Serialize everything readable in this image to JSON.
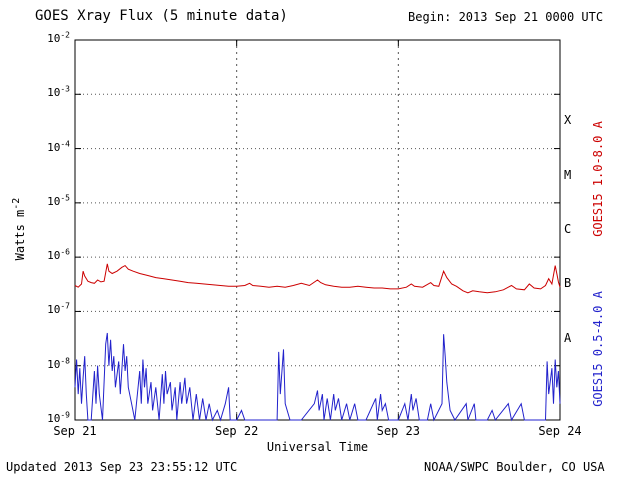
{
  "title": "GOES Xray Flux (5 minute data)",
  "begin_label": "Begin:  2013 Sep 21 0000 UTC",
  "footer": {
    "updated": "Updated 2013 Sep 23 23:55:12 UTC",
    "credit": "NOAA/SWPC Boulder, CO USA"
  },
  "colors": {
    "long_channel": "#cc0000",
    "short_channel": "#2222cc",
    "axis": "#000000",
    "grid": "#555555"
  },
  "chart_data": {
    "type": "line",
    "title": "GOES Xray Flux (5 minute data)",
    "xlabel": "Universal Time",
    "ylabel_base": "Watts m",
    "ylabel_exp": "-2",
    "x_ticks": [
      "Sep 21",
      "Sep 22",
      "Sep 23",
      "Sep 24"
    ],
    "x_range_days": [
      0,
      3
    ],
    "y_scale": "log",
    "y_tick_exponents": [
      -2,
      -3,
      -4,
      -5,
      -6,
      -7,
      -8,
      -9
    ],
    "ylim": [
      1e-09,
      0.01
    ],
    "grid": true,
    "flux_classes": [
      {
        "label": "X",
        "exp": -3.5
      },
      {
        "label": "M",
        "exp": -4.5
      },
      {
        "label": "C",
        "exp": -5.5
      },
      {
        "label": "B",
        "exp": -6.5
      },
      {
        "label": "A",
        "exp": -7.5
      }
    ],
    "legend_position": "right",
    "series": [
      {
        "name": "GOES15 1.0-8.0 A",
        "color": "#cc0000",
        "points": [
          [
            0.0,
            3e-07
          ],
          [
            0.02,
            2.8e-07
          ],
          [
            0.04,
            3.2e-07
          ],
          [
            0.05,
            5.5e-07
          ],
          [
            0.06,
            4.5e-07
          ],
          [
            0.08,
            3.6e-07
          ],
          [
            0.1,
            3.4e-07
          ],
          [
            0.12,
            3.3e-07
          ],
          [
            0.14,
            3.8e-07
          ],
          [
            0.16,
            3.5e-07
          ],
          [
            0.18,
            3.6e-07
          ],
          [
            0.2,
            7.5e-07
          ],
          [
            0.21,
            5.5e-07
          ],
          [
            0.23,
            5e-07
          ],
          [
            0.26,
            5.5e-07
          ],
          [
            0.29,
            6.5e-07
          ],
          [
            0.31,
            7e-07
          ],
          [
            0.33,
            6e-07
          ],
          [
            0.36,
            5.5e-07
          ],
          [
            0.4,
            5e-07
          ],
          [
            0.45,
            4.6e-07
          ],
          [
            0.5,
            4.2e-07
          ],
          [
            0.55,
            4e-07
          ],
          [
            0.6,
            3.8e-07
          ],
          [
            0.65,
            3.6e-07
          ],
          [
            0.7,
            3.4e-07
          ],
          [
            0.75,
            3.3e-07
          ],
          [
            0.8,
            3.2e-07
          ],
          [
            0.85,
            3.1e-07
          ],
          [
            0.9,
            3e-07
          ],
          [
            0.95,
            2.9e-07
          ],
          [
            1.0,
            2.9e-07
          ],
          [
            1.05,
            3e-07
          ],
          [
            1.08,
            3.3e-07
          ],
          [
            1.1,
            3e-07
          ],
          [
            1.15,
            2.9e-07
          ],
          [
            1.2,
            2.8e-07
          ],
          [
            1.25,
            2.9e-07
          ],
          [
            1.3,
            2.8e-07
          ],
          [
            1.35,
            3e-07
          ],
          [
            1.4,
            3.3e-07
          ],
          [
            1.45,
            3e-07
          ],
          [
            1.5,
            3.8e-07
          ],
          [
            1.52,
            3.4e-07
          ],
          [
            1.55,
            3.1e-07
          ],
          [
            1.6,
            2.9e-07
          ],
          [
            1.65,
            2.8e-07
          ],
          [
            1.7,
            2.8e-07
          ],
          [
            1.75,
            2.9e-07
          ],
          [
            1.8,
            2.8e-07
          ],
          [
            1.85,
            2.7e-07
          ],
          [
            1.9,
            2.7e-07
          ],
          [
            1.95,
            2.6e-07
          ],
          [
            2.0,
            2.6e-07
          ],
          [
            2.05,
            2.8e-07
          ],
          [
            2.08,
            3.2e-07
          ],
          [
            2.1,
            2.9e-07
          ],
          [
            2.15,
            2.8e-07
          ],
          [
            2.2,
            3.4e-07
          ],
          [
            2.22,
            3e-07
          ],
          [
            2.25,
            2.9e-07
          ],
          [
            2.28,
            5.5e-07
          ],
          [
            2.3,
            4.2e-07
          ],
          [
            2.33,
            3.2e-07
          ],
          [
            2.36,
            2.9e-07
          ],
          [
            2.4,
            2.4e-07
          ],
          [
            2.43,
            2.2e-07
          ],
          [
            2.46,
            2.4e-07
          ],
          [
            2.5,
            2.3e-07
          ],
          [
            2.55,
            2.2e-07
          ],
          [
            2.6,
            2.3e-07
          ],
          [
            2.65,
            2.5e-07
          ],
          [
            2.7,
            3e-07
          ],
          [
            2.73,
            2.6e-07
          ],
          [
            2.78,
            2.5e-07
          ],
          [
            2.81,
            3.2e-07
          ],
          [
            2.84,
            2.7e-07
          ],
          [
            2.88,
            2.6e-07
          ],
          [
            2.91,
            3e-07
          ],
          [
            2.93,
            4e-07
          ],
          [
            2.95,
            3.2e-07
          ],
          [
            2.97,
            7e-07
          ],
          [
            2.98,
            5e-07
          ],
          [
            2.99,
            3.5e-07
          ],
          [
            3.0,
            2.8e-07
          ]
        ]
      },
      {
        "name": "GOES15 0.5-4.0 A",
        "color": "#2222cc",
        "points": [
          [
            0.0,
            4e-09
          ],
          [
            0.01,
            1.3e-08
          ],
          [
            0.02,
            3e-09
          ],
          [
            0.03,
            9e-09
          ],
          [
            0.04,
            2e-09
          ],
          [
            0.05,
            6e-09
          ],
          [
            0.06,
            1.5e-08
          ],
          [
            0.07,
            3e-09
          ],
          [
            0.08,
            1e-09
          ],
          [
            0.1,
            1e-09
          ],
          [
            0.12,
            8e-09
          ],
          [
            0.13,
            2e-09
          ],
          [
            0.14,
            1e-08
          ],
          [
            0.15,
            3e-09
          ],
          [
            0.17,
            1e-09
          ],
          [
            0.19,
            2.5e-08
          ],
          [
            0.2,
            4e-08
          ],
          [
            0.21,
            1e-08
          ],
          [
            0.22,
            3e-08
          ],
          [
            0.23,
            8e-09
          ],
          [
            0.24,
            1.5e-08
          ],
          [
            0.25,
            4e-09
          ],
          [
            0.27,
            1.2e-08
          ],
          [
            0.28,
            3e-09
          ],
          [
            0.3,
            2.5e-08
          ],
          [
            0.31,
            8e-09
          ],
          [
            0.32,
            1.5e-08
          ],
          [
            0.33,
            4e-09
          ],
          [
            0.35,
            2e-09
          ],
          [
            0.37,
            1e-09
          ],
          [
            0.4,
            8e-09
          ],
          [
            0.41,
            2e-09
          ],
          [
            0.42,
            1.3e-08
          ],
          [
            0.43,
            4e-09
          ],
          [
            0.44,
            9e-09
          ],
          [
            0.45,
            2e-09
          ],
          [
            0.47,
            5e-09
          ],
          [
            0.48,
            1.5e-09
          ],
          [
            0.5,
            4e-09
          ],
          [
            0.52,
            1e-09
          ],
          [
            0.54,
            7e-09
          ],
          [
            0.55,
            2e-09
          ],
          [
            0.56,
            8e-09
          ],
          [
            0.57,
            3e-09
          ],
          [
            0.59,
            5e-09
          ],
          [
            0.6,
            1.5e-09
          ],
          [
            0.62,
            4e-09
          ],
          [
            0.63,
            1e-09
          ],
          [
            0.65,
            5e-09
          ],
          [
            0.66,
            2e-09
          ],
          [
            0.68,
            6e-09
          ],
          [
            0.69,
            2e-09
          ],
          [
            0.71,
            4e-09
          ],
          [
            0.73,
            1e-09
          ],
          [
            0.75,
            3e-09
          ],
          [
            0.77,
            1e-09
          ],
          [
            0.79,
            2.5e-09
          ],
          [
            0.81,
            1e-09
          ],
          [
            0.83,
            2e-09
          ],
          [
            0.85,
            1e-09
          ],
          [
            0.88,
            1.5e-09
          ],
          [
            0.9,
            1e-09
          ],
          [
            0.93,
            2e-09
          ],
          [
            0.95,
            4e-09
          ],
          [
            0.96,
            1e-09
          ],
          [
            1.0,
            1e-09
          ],
          [
            1.03,
            1.5e-09
          ],
          [
            1.05,
            1e-09
          ],
          [
            1.1,
            1e-09
          ],
          [
            1.15,
            1e-09
          ],
          [
            1.25,
            1e-09
          ],
          [
            1.26,
            1.8e-08
          ],
          [
            1.27,
            3e-09
          ],
          [
            1.29,
            2e-08
          ],
          [
            1.3,
            2e-09
          ],
          [
            1.33,
            1e-09
          ],
          [
            1.4,
            1e-09
          ],
          [
            1.48,
            2e-09
          ],
          [
            1.5,
            3.5e-09
          ],
          [
            1.51,
            1.5e-09
          ],
          [
            1.53,
            3e-09
          ],
          [
            1.54,
            1e-09
          ],
          [
            1.56,
            2.5e-09
          ],
          [
            1.58,
            1e-09
          ],
          [
            1.6,
            3e-09
          ],
          [
            1.61,
            1.5e-09
          ],
          [
            1.63,
            2.5e-09
          ],
          [
            1.65,
            1e-09
          ],
          [
            1.68,
            2e-09
          ],
          [
            1.7,
            1e-09
          ],
          [
            1.73,
            2e-09
          ],
          [
            1.75,
            1e-09
          ],
          [
            1.8,
            1e-09
          ],
          [
            1.86,
            2.5e-09
          ],
          [
            1.87,
            1e-09
          ],
          [
            1.89,
            3e-09
          ],
          [
            1.9,
            1.5e-09
          ],
          [
            1.92,
            2e-09
          ],
          [
            1.94,
            1e-09
          ],
          [
            2.0,
            1e-09
          ],
          [
            2.04,
            2e-09
          ],
          [
            2.06,
            1e-09
          ],
          [
            2.08,
            3e-09
          ],
          [
            2.09,
            1.5e-09
          ],
          [
            2.11,
            2.5e-09
          ],
          [
            2.13,
            1e-09
          ],
          [
            2.18,
            1e-09
          ],
          [
            2.2,
            2e-09
          ],
          [
            2.22,
            1e-09
          ],
          [
            2.27,
            2e-09
          ],
          [
            2.28,
            3.8e-08
          ],
          [
            2.29,
            1.5e-08
          ],
          [
            2.3,
            5e-09
          ],
          [
            2.32,
            1.5e-09
          ],
          [
            2.35,
            1e-09
          ],
          [
            2.42,
            2e-09
          ],
          [
            2.43,
            1e-09
          ],
          [
            2.47,
            2e-09
          ],
          [
            2.48,
            1e-09
          ],
          [
            2.55,
            1e-09
          ],
          [
            2.58,
            1.5e-09
          ],
          [
            2.6,
            1e-09
          ],
          [
            2.68,
            2e-09
          ],
          [
            2.7,
            1e-09
          ],
          [
            2.76,
            2e-09
          ],
          [
            2.78,
            1e-09
          ],
          [
            2.85,
            1e-09
          ],
          [
            2.91,
            1e-09
          ],
          [
            2.92,
            1.2e-08
          ],
          [
            2.93,
            3e-09
          ],
          [
            2.95,
            9e-09
          ],
          [
            2.96,
            2e-09
          ],
          [
            2.97,
            1.3e-08
          ],
          [
            2.98,
            4e-09
          ],
          [
            2.99,
            8e-09
          ],
          [
            3.0,
            2e-09
          ]
        ]
      }
    ]
  }
}
